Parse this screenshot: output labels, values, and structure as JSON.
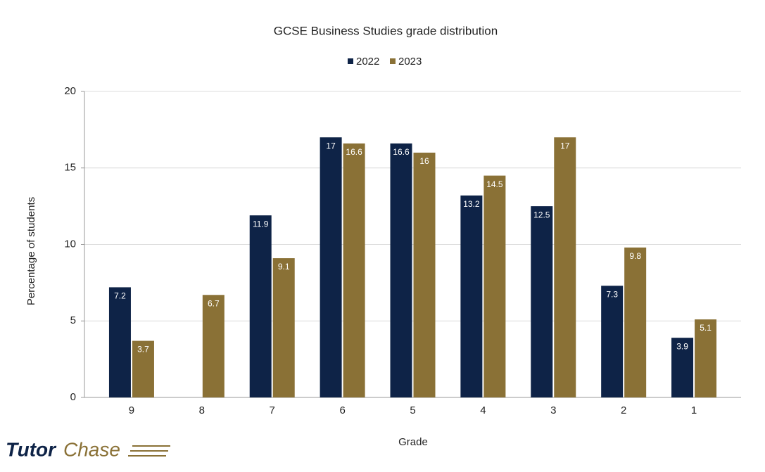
{
  "chart_data": {
    "type": "bar",
    "title": "GCSE Business Studies grade distribution",
    "x_label": "Grade",
    "y_label": "Percentage of students",
    "categories": [
      "9",
      "8",
      "7",
      "6",
      "5",
      "4",
      "3",
      "2",
      "1"
    ],
    "series": [
      {
        "name": "2022",
        "color": "#0e2347",
        "values": [
          7.2,
          null,
          11.9,
          17,
          16.6,
          13.2,
          12.5,
          7.3,
          3.9
        ]
      },
      {
        "name": "2023",
        "color": "#8a7136",
        "values": [
          3.7,
          6.7,
          9.1,
          16.6,
          16,
          14.5,
          17,
          9.8,
          5.1
        ]
      }
    ],
    "ylim": [
      0,
      20
    ],
    "yticks": [
      0,
      5,
      10,
      15,
      20
    ],
    "grid": true,
    "legend": "top",
    "logo": [
      "Tutor",
      "Chase"
    ]
  }
}
